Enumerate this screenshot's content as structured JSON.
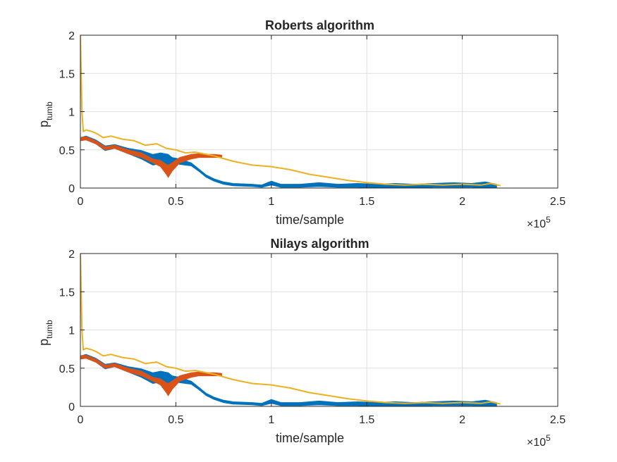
{
  "chart_data": [
    {
      "type": "line",
      "title": "Roberts algorithm",
      "xlabel": "time/sample",
      "ylabel": {
        "base": "p",
        "subscript": "tumb"
      },
      "xlim": [
        0,
        250000
      ],
      "ylim": [
        0,
        2
      ],
      "x_ticks": [
        0,
        0.5,
        1,
        1.5,
        2,
        2.5
      ],
      "x_tick_labels": [
        "0",
        "0.5",
        "1",
        "1.5",
        "2",
        "2.5"
      ],
      "x_exponent": {
        "base": "×10",
        "power": "5"
      },
      "y_ticks": [
        0,
        0.5,
        1,
        1.5,
        2
      ],
      "y_tick_labels": [
        "0",
        "0.5",
        "1",
        "1.5",
        "2"
      ],
      "grid": true,
      "series": [
        {
          "color": "#0072BD",
          "band": true,
          "x": [
            0,
            3000,
            8000,
            13000,
            18000,
            25000,
            32000,
            38000,
            42000,
            46000,
            48000,
            52000,
            58000,
            62000,
            66000,
            70000,
            75000,
            80000,
            90000,
            95000,
            100000,
            105000,
            115000,
            125000,
            135000,
            145000,
            155000,
            165000,
            175000,
            185000,
            195000,
            205000,
            212000,
            218000
          ],
          "upper": [
            0.66,
            0.68,
            0.63,
            0.55,
            0.57,
            0.52,
            0.49,
            0.44,
            0.46,
            0.44,
            0.4,
            0.38,
            0.33,
            0.25,
            0.17,
            0.12,
            0.08,
            0.06,
            0.05,
            0.04,
            0.09,
            0.05,
            0.05,
            0.07,
            0.05,
            0.06,
            0.05,
            0.06,
            0.05,
            0.06,
            0.07,
            0.06,
            0.08,
            0.05
          ],
          "lower": [
            0.62,
            0.63,
            0.58,
            0.49,
            0.52,
            0.45,
            0.38,
            0.3,
            0.32,
            0.3,
            0.33,
            0.31,
            0.29,
            0.22,
            0.14,
            0.09,
            0.05,
            0.03,
            0.02,
            0.01,
            0.04,
            0.01,
            0.01,
            0.02,
            0.01,
            0.01,
            0.0,
            0.01,
            0.0,
            0.01,
            0.01,
            0.01,
            0.0,
            0.0
          ]
        },
        {
          "color": "#D95319",
          "band": true,
          "x": [
            0,
            3000,
            8000,
            13000,
            18000,
            25000,
            32000,
            38000,
            42000,
            45000,
            46000,
            48000,
            52000,
            58000,
            62000,
            66000,
            70000,
            74000
          ],
          "upper": [
            0.66,
            0.67,
            0.62,
            0.54,
            0.56,
            0.5,
            0.46,
            0.38,
            0.36,
            0.31,
            0.3,
            0.33,
            0.4,
            0.44,
            0.45,
            0.44,
            0.44,
            0.43
          ],
          "lower": [
            0.62,
            0.63,
            0.58,
            0.5,
            0.52,
            0.45,
            0.4,
            0.33,
            0.28,
            0.18,
            0.14,
            0.22,
            0.33,
            0.38,
            0.4,
            0.4,
            0.4,
            0.4
          ]
        },
        {
          "color": "#EDB120",
          "band": false,
          "x": [
            0,
            400,
            800,
            1500,
            3000,
            6000,
            8000,
            12000,
            16000,
            22000,
            28000,
            34000,
            40000,
            45000,
            50000,
            55000,
            60000,
            70000,
            80000,
            90000,
            100000,
            110000,
            120000,
            130000,
            140000,
            150000,
            160000,
            170000,
            180000,
            190000,
            200000,
            210000,
            215000,
            220000
          ],
          "upper": [
            2.0,
            1.5,
            1.0,
            0.74,
            0.76,
            0.74,
            0.72,
            0.66,
            0.68,
            0.64,
            0.62,
            0.56,
            0.58,
            0.52,
            0.5,
            0.46,
            0.47,
            0.42,
            0.35,
            0.3,
            0.28,
            0.24,
            0.18,
            0.14,
            0.1,
            0.07,
            0.05,
            0.04,
            0.05,
            0.04,
            0.05,
            0.04,
            0.06,
            0.03
          ]
        }
      ]
    },
    {
      "type": "line",
      "title": "Nilays algorithm",
      "xlabel": "time/sample",
      "ylabel": {
        "base": "p",
        "subscript": "tumb"
      },
      "xlim": [
        0,
        250000
      ],
      "ylim": [
        0,
        2
      ],
      "x_ticks": [
        0,
        0.5,
        1,
        1.5,
        2,
        2.5
      ],
      "x_tick_labels": [
        "0",
        "0.5",
        "1",
        "1.5",
        "2",
        "2.5"
      ],
      "x_exponent": {
        "base": "×10",
        "power": "5"
      },
      "y_ticks": [
        0,
        0.5,
        1,
        1.5,
        2
      ],
      "y_tick_labels": [
        "0",
        "0.5",
        "1",
        "1.5",
        "2"
      ],
      "grid": true,
      "series": [
        {
          "color": "#0072BD",
          "band": true,
          "x": [
            0,
            3000,
            8000,
            13000,
            18000,
            25000,
            32000,
            38000,
            42000,
            46000,
            48000,
            52000,
            58000,
            62000,
            66000,
            70000,
            75000,
            80000,
            90000,
            95000,
            100000,
            105000,
            115000,
            125000,
            135000,
            145000,
            155000,
            165000,
            175000,
            185000,
            195000,
            205000,
            212000,
            218000
          ],
          "upper": [
            0.66,
            0.68,
            0.63,
            0.55,
            0.57,
            0.52,
            0.49,
            0.44,
            0.46,
            0.44,
            0.4,
            0.38,
            0.33,
            0.25,
            0.17,
            0.12,
            0.08,
            0.06,
            0.05,
            0.04,
            0.09,
            0.05,
            0.05,
            0.07,
            0.05,
            0.06,
            0.05,
            0.06,
            0.05,
            0.06,
            0.07,
            0.06,
            0.08,
            0.05
          ],
          "lower": [
            0.62,
            0.63,
            0.58,
            0.49,
            0.52,
            0.45,
            0.38,
            0.3,
            0.32,
            0.3,
            0.33,
            0.31,
            0.29,
            0.22,
            0.14,
            0.09,
            0.05,
            0.03,
            0.02,
            0.01,
            0.04,
            0.01,
            0.01,
            0.02,
            0.01,
            0.01,
            0.0,
            0.01,
            0.0,
            0.01,
            0.01,
            0.01,
            0.0,
            0.0
          ]
        },
        {
          "color": "#D95319",
          "band": true,
          "x": [
            0,
            3000,
            8000,
            13000,
            18000,
            25000,
            32000,
            38000,
            42000,
            45000,
            46000,
            48000,
            52000,
            58000,
            62000,
            66000,
            70000,
            74000
          ],
          "upper": [
            0.66,
            0.67,
            0.62,
            0.54,
            0.56,
            0.5,
            0.46,
            0.38,
            0.36,
            0.31,
            0.3,
            0.33,
            0.4,
            0.44,
            0.45,
            0.44,
            0.44,
            0.43
          ],
          "lower": [
            0.62,
            0.63,
            0.58,
            0.5,
            0.52,
            0.45,
            0.4,
            0.33,
            0.28,
            0.18,
            0.14,
            0.22,
            0.33,
            0.38,
            0.4,
            0.4,
            0.4,
            0.4
          ]
        },
        {
          "color": "#EDB120",
          "band": false,
          "x": [
            0,
            400,
            800,
            1500,
            3000,
            6000,
            8000,
            12000,
            16000,
            22000,
            28000,
            34000,
            40000,
            45000,
            50000,
            55000,
            60000,
            70000,
            80000,
            90000,
            100000,
            110000,
            120000,
            130000,
            140000,
            150000,
            160000,
            170000,
            180000,
            190000,
            200000,
            210000,
            215000,
            220000
          ],
          "upper": [
            2.0,
            1.5,
            1.0,
            0.74,
            0.76,
            0.74,
            0.72,
            0.66,
            0.68,
            0.64,
            0.62,
            0.56,
            0.58,
            0.52,
            0.5,
            0.46,
            0.47,
            0.42,
            0.35,
            0.3,
            0.28,
            0.24,
            0.18,
            0.14,
            0.1,
            0.07,
            0.05,
            0.04,
            0.05,
            0.04,
            0.05,
            0.04,
            0.06,
            0.03
          ]
        }
      ]
    }
  ]
}
